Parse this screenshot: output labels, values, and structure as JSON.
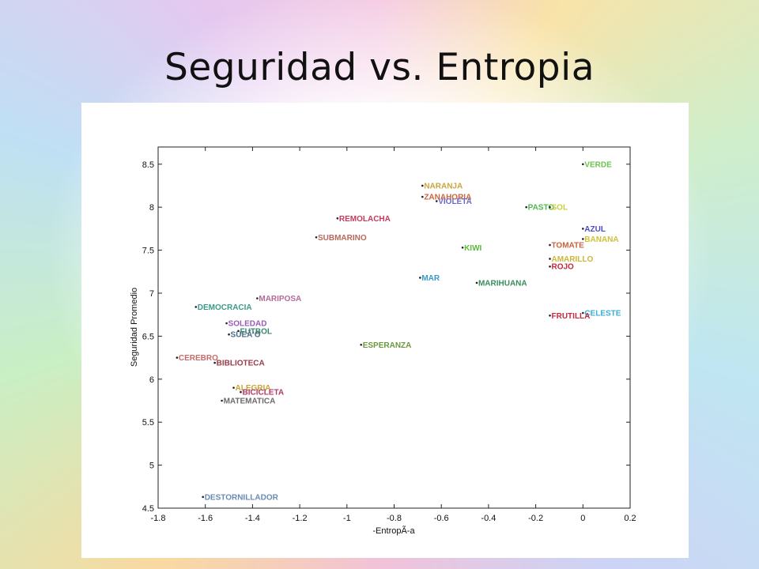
{
  "slide": {
    "title": "Seguridad vs. Entropia"
  },
  "chart_data": {
    "type": "scatter",
    "title": "",
    "xlabel": "-EntropÃ-a",
    "ylabel": "Seguridad Promedio",
    "xlim": [
      -1.8,
      0.2
    ],
    "ylim": [
      4.5,
      8.7
    ],
    "xticks": [
      -1.8,
      -1.6,
      -1.4,
      -1.2,
      -1,
      -0.8,
      -0.6,
      -0.4,
      -0.2,
      0,
      0.2
    ],
    "xtick_labels": [
      "-1.8",
      "-1.6",
      "-1.4",
      "-1.2",
      "-1",
      "-0.8",
      "-0.6",
      "-0.4",
      "-0.2",
      "0",
      "0.2"
    ],
    "yticks": [
      4.5,
      5,
      5.5,
      6,
      6.5,
      7,
      7.5,
      8,
      8.5
    ],
    "ytick_labels": [
      "4.5",
      "5",
      "5.5",
      "6",
      "6.5",
      "7",
      "7.5",
      "8",
      "8.5"
    ],
    "grid": false,
    "points": [
      {
        "label": "VERDE",
        "x": 0.0,
        "y": 8.5,
        "color": "#6cc34a"
      },
      {
        "label": "NARANJA",
        "x": -0.68,
        "y": 8.25,
        "color": "#c9a43b"
      },
      {
        "label": "ZANAHORIA",
        "x": -0.68,
        "y": 8.12,
        "color": "#c8643c"
      },
      {
        "label": "VIOLETA",
        "x": -0.62,
        "y": 8.07,
        "color": "#6a6ac8"
      },
      {
        "label": "PASTO",
        "x": -0.24,
        "y": 8.0,
        "color": "#4fb84a"
      },
      {
        "label": "SOL",
        "x": -0.14,
        "y": 8.0,
        "color": "#c8cf3a"
      },
      {
        "label": "REMOLACHA",
        "x": -1.04,
        "y": 7.87,
        "color": "#c83a5a"
      },
      {
        "label": "AZUL",
        "x": 0.0,
        "y": 7.75,
        "color": "#4a4ac8"
      },
      {
        "label": "SUBMARINO",
        "x": -1.13,
        "y": 7.65,
        "color": "#b56a5a"
      },
      {
        "label": "BANANA",
        "x": 0.0,
        "y": 7.63,
        "color": "#cfc23a"
      },
      {
        "label": "TOMATE",
        "x": -0.14,
        "y": 7.56,
        "color": "#c8643c"
      },
      {
        "label": "KIWI",
        "x": -0.51,
        "y": 7.53,
        "color": "#5cb83a"
      },
      {
        "label": "AMARILLO",
        "x": -0.14,
        "y": 7.4,
        "color": "#c9b83a"
      },
      {
        "label": "ROJO",
        "x": -0.14,
        "y": 7.31,
        "color": "#c8283c"
      },
      {
        "label": "MAR",
        "x": -0.69,
        "y": 7.18,
        "color": "#3a9ac8"
      },
      {
        "label": "MARIHUANA",
        "x": -0.45,
        "y": 7.12,
        "color": "#3a8a5a"
      },
      {
        "label": "MARIPOSA",
        "x": -1.38,
        "y": 6.94,
        "color": "#b56a9a"
      },
      {
        "label": "DEMOCRACIA",
        "x": -1.64,
        "y": 6.84,
        "color": "#3a9a8a"
      },
      {
        "label": "CELESTE",
        "x": 0.0,
        "y": 6.77,
        "color": "#3aaed8"
      },
      {
        "label": "FRUTILLA",
        "x": -0.14,
        "y": 6.74,
        "color": "#c8283c"
      },
      {
        "label": "SOLEDAD",
        "x": -1.51,
        "y": 6.65,
        "color": "#9a5ab5"
      },
      {
        "label": "FUTBOL",
        "x": -1.46,
        "y": 6.56,
        "color": "#3a8a6a"
      },
      {
        "label": "SUEÃ'O",
        "x": -1.5,
        "y": 6.52,
        "color": "#4a6a8a"
      },
      {
        "label": "ESPERANZA",
        "x": -0.94,
        "y": 6.4,
        "color": "#6a9a3a"
      },
      {
        "label": "CEREBRO",
        "x": -1.72,
        "y": 6.25,
        "color": "#c86a6a"
      },
      {
        "label": "BIBLIOTECA",
        "x": -1.56,
        "y": 6.19,
        "color": "#9a3a4a"
      },
      {
        "label": "ALEGRIA",
        "x": -1.48,
        "y": 5.9,
        "color": "#c8a43a"
      },
      {
        "label": "BICICLETA",
        "x": -1.45,
        "y": 5.85,
        "color": "#b53a6a"
      },
      {
        "label": "MATEMATICA",
        "x": -1.53,
        "y": 5.75,
        "color": "#6a6a6a"
      },
      {
        "label": "DESTORNILLADOR",
        "x": -1.61,
        "y": 4.63,
        "color": "#6a8ab5"
      }
    ]
  }
}
